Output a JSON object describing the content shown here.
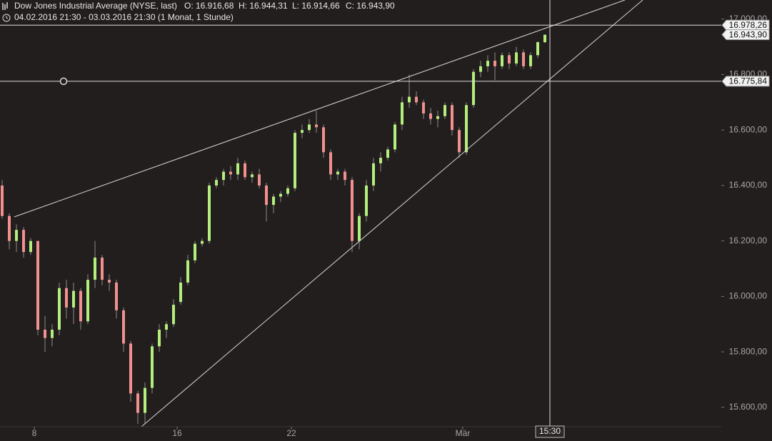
{
  "chart_data": {
    "type": "candlestick",
    "title": "Dow Jones Industrial Average (NYSE, last)",
    "ohlc_labels": [
      "O: 16.916,68",
      "H: 16.944,31",
      "L: 16.914,66",
      "C: 16.943,90"
    ],
    "subtitle": "04.02.2016 21:30 - 03.03.2016 21:30 (1 Monat, 1 Stunde)",
    "categories": [
      null,
      null,
      null,
      null,
      null,
      "8",
      null,
      null,
      null,
      null,
      null,
      null,
      null,
      null,
      null,
      null,
      null,
      null,
      null,
      null,
      null,
      null,
      null,
      null,
      null,
      "16",
      null,
      null,
      null,
      null,
      null,
      null,
      null,
      null,
      null,
      null,
      null,
      null,
      null,
      null,
      null,
      "22",
      null,
      null,
      null,
      null,
      null,
      null,
      null,
      null,
      null,
      null,
      null,
      null,
      null,
      null,
      null,
      null,
      null,
      null,
      null,
      null,
      null,
      null,
      null,
      "Mär",
      null,
      null,
      null,
      null,
      null,
      null,
      null,
      null,
      null,
      null,
      null
    ],
    "open": [
      16400,
      16290,
      16200,
      16240,
      16160,
      16200,
      15880,
      15850,
      15880,
      16030,
      15960,
      16020,
      15910,
      16060,
      16140,
      16060,
      16050,
      15950,
      15830,
      15650,
      15580,
      15670,
      15820,
      15880,
      15900,
      15980,
      16050,
      16130,
      16190,
      16200,
      16400,
      16420,
      16450,
      16440,
      16480,
      16430,
      16440,
      16400,
      16330,
      16360,
      16370,
      16390,
      16590,
      16600,
      16620,
      16610,
      16520,
      16440,
      16450,
      16420,
      16200,
      16290,
      16400,
      16480,
      16500,
      16530,
      16620,
      16700,
      16720,
      16700,
      16660,
      16640,
      16650,
      16690,
      16600,
      16520,
      16690,
      16810,
      16830,
      16850,
      16830,
      16870,
      16840,
      16880,
      16830,
      16870,
      16916.68
    ],
    "high": [
      16420,
      16300,
      16260,
      16250,
      16210,
      16200,
      15930,
      15900,
      16050,
      16060,
      16050,
      16030,
      16080,
      16200,
      16150,
      16080,
      16060,
      15960,
      15840,
      15660,
      15690,
      15830,
      15900,
      15910,
      15990,
      16070,
      16150,
      16200,
      16210,
      16410,
      16430,
      16460,
      16470,
      16500,
      16490,
      16450,
      16460,
      16410,
      16370,
      16380,
      16400,
      16600,
      16620,
      16640,
      16670,
      16620,
      16530,
      16460,
      16460,
      16430,
      16300,
      16420,
      16500,
      16520,
      16540,
      16630,
      16720,
      16800,
      16740,
      16710,
      16680,
      16670,
      16700,
      16700,
      16610,
      16700,
      16820,
      16850,
      16870,
      16880,
      16880,
      16880,
      16900,
      16890,
      16880,
      16920,
      16944.31
    ],
    "low": [
      16280,
      16170,
      16160,
      16140,
      16150,
      15860,
      15800,
      15820,
      15860,
      15920,
      15900,
      15880,
      15900,
      16030,
      16040,
      16020,
      15920,
      15800,
      15620,
      15540,
      15540,
      15650,
      15800,
      15850,
      15890,
      15970,
      16040,
      16120,
      16180,
      16190,
      16390,
      16400,
      16420,
      16420,
      16420,
      16410,
      16390,
      16270,
      16300,
      16340,
      16360,
      16380,
      16570,
      16590,
      16590,
      16500,
      16420,
      16420,
      16400,
      16160,
      16170,
      16270,
      16380,
      16450,
      16490,
      16520,
      16600,
      16680,
      16690,
      16640,
      16620,
      16610,
      16640,
      16580,
      16500,
      16510,
      16680,
      16790,
      16810,
      16780,
      16820,
      16820,
      16830,
      16820,
      16820,
      16860,
      16914.66
    ],
    "close": [
      16290,
      16200,
      16240,
      16160,
      16200,
      15880,
      15850,
      15880,
      16030,
      15960,
      16020,
      15910,
      16060,
      16140,
      16060,
      16050,
      15950,
      15830,
      15650,
      15580,
      15670,
      15820,
      15880,
      15900,
      15970,
      16050,
      16130,
      16190,
      16200,
      16400,
      16420,
      16450,
      16440,
      16480,
      16430,
      16440,
      16400,
      16330,
      16360,
      16370,
      16390,
      16590,
      16600,
      16620,
      16610,
      16520,
      16440,
      16450,
      16420,
      16200,
      16290,
      16400,
      16480,
      16500,
      16530,
      16620,
      16700,
      16720,
      16700,
      16660,
      16640,
      16650,
      16690,
      16600,
      16520,
      16690,
      16810,
      16830,
      16850,
      16830,
      16870,
      16840,
      16880,
      16830,
      16870,
      16917,
      16943.9
    ],
    "up_color": "#b4ee7c",
    "down_color": "#f29090",
    "ylim": [
      15530,
      17069
    ],
    "yticks": [
      {
        "value": 15600,
        "label": "15.600,00"
      },
      {
        "value": 15800,
        "label": "15.800,00"
      },
      {
        "value": 16000,
        "label": "16.000,00"
      },
      {
        "value": 16200,
        "label": "16.200,00"
      },
      {
        "value": 16400,
        "label": "16.400,00"
      },
      {
        "value": 16600,
        "label": "16.600,00"
      },
      {
        "value": 16800,
        "label": "16.800,00"
      },
      {
        "value": 17000,
        "label": "17.000,00"
      }
    ],
    "trendlines": [
      {
        "x": [
          1.7,
          87.2
        ],
        "y": [
          16287,
          17069
        ]
      },
      {
        "x": [
          19.5,
          89.7
        ],
        "y": [
          15530,
          17069
        ]
      }
    ],
    "horizontal_line": {
      "value": 16775.84,
      "label": "16.775,84",
      "anchor_x": 8.6
    },
    "crosshair": {
      "x": 76.7,
      "time_label": "15:30",
      "value": 16978.26,
      "label": "16.978,26"
    },
    "last_price": {
      "value": 16943.9,
      "label": "16.943,90"
    }
  }
}
